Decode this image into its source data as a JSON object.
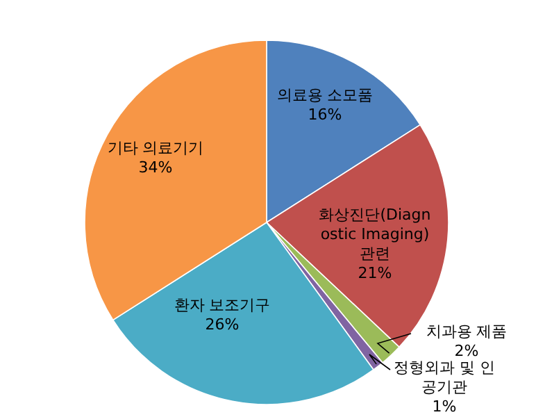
{
  "chart_data": {
    "type": "pie",
    "categories": [
      "의료용 소모품",
      "화상진단(Diagnostic Imaging) 관련",
      "치과용 제품",
      "정형외과 및 인공기관",
      "환자 보조기구",
      "기타 의료기기"
    ],
    "values": [
      16,
      21,
      2,
      1,
      26,
      34
    ],
    "colors": [
      "#4f81bd",
      "#c0504d",
      "#9bbb59",
      "#8064a2",
      "#4bacc6",
      "#f79646"
    ],
    "value_labels": [
      "16%",
      "21%",
      "2%",
      "1%",
      "26%",
      "34%"
    ]
  }
}
